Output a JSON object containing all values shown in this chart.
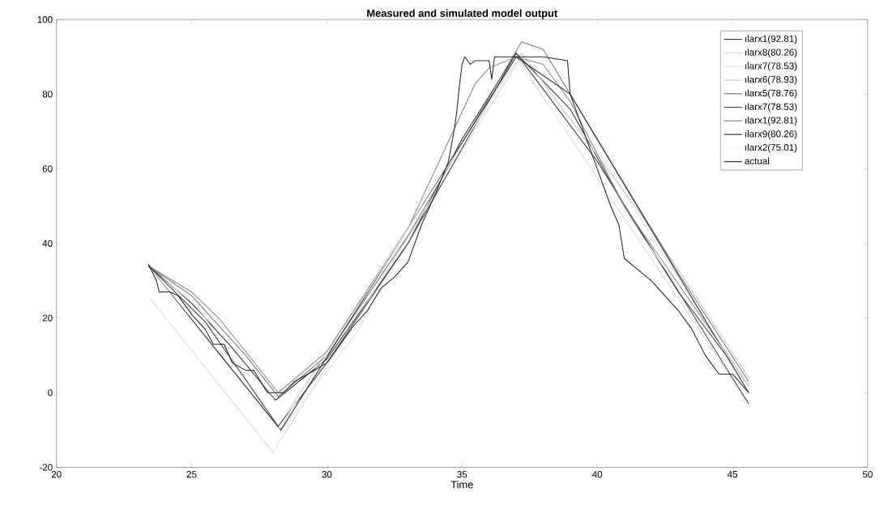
{
  "chart_data": {
    "type": "line",
    "title": "Measured and simulated model output",
    "xlabel": "Time",
    "xlim": [
      20,
      50
    ],
    "xticks": [
      20,
      25,
      30,
      35,
      40,
      45,
      50
    ],
    "ylim": [
      -20,
      100
    ],
    "yticks": [
      -20,
      0,
      20,
      40,
      60,
      80,
      100
    ],
    "grid": false,
    "legend": "top right",
    "marker": "none",
    "line_style": "solid",
    "series": [
      {
        "name": "ılarx1(92.81)",
        "color": "#333333",
        "x": [
          23.4,
          25,
          26.5,
          28.1,
          30,
          33,
          35,
          37,
          39,
          41,
          43,
          45.6
        ],
        "values": [
          34,
          24,
          12,
          -2,
          9,
          40,
          68,
          91,
          76,
          50,
          27,
          2
        ]
      },
      {
        "name": "ılarx8(80.26)",
        "color": "#d8d8d8",
        "x": [
          23.5,
          28.0,
          37.1,
          45.6
        ],
        "values": [
          25,
          -16,
          89,
          -3
        ]
      },
      {
        "name": "ılarx7(78.53)",
        "color": "#e2e2e2",
        "x": [
          23.5,
          25.5,
          28.3,
          31,
          37,
          40,
          45.6
        ],
        "values": [
          34,
          20,
          -10,
          15,
          90,
          65,
          1
        ]
      },
      {
        "name": "ılarx6(78.93)",
        "color": "#c8c8c8",
        "x": [
          23.5,
          28.2,
          37.2,
          42,
          45.6
        ],
        "values": [
          33,
          -9,
          91,
          44,
          4
        ]
      },
      {
        "name": "ılarx5(78.76)",
        "color": "#777777",
        "x": [
          23.4,
          25,
          27,
          28.2,
          30,
          33,
          37.2,
          38,
          40,
          43,
          45.6
        ],
        "values": [
          34,
          26,
          10,
          -1,
          10,
          42,
          94,
          92,
          68,
          32,
          3
        ]
      },
      {
        "name": "ılarx7(78.53)",
        "color": "#444444",
        "x": [
          23.4,
          25.5,
          28.2,
          30,
          33,
          37,
          40,
          45.6
        ],
        "values": [
          34,
          19,
          -9,
          8,
          40,
          91,
          62,
          -3
        ]
      },
      {
        "name": "ılarx1(92.81)",
        "color": "#888888",
        "x": [
          23.4,
          25,
          26,
          27,
          28.2,
          30,
          33,
          35.5,
          36,
          37,
          38,
          39,
          41,
          45.6
        ],
        "values": [
          34,
          27,
          20,
          11,
          0,
          11,
          44,
          83,
          87,
          90,
          88,
          78,
          50,
          2
        ]
      },
      {
        "name": "ılarx9(80.26)",
        "color": "#2a2a2a",
        "x": [
          23.4,
          28.3,
          37,
          39,
          45.6
        ],
        "values": [
          34,
          -10,
          90,
          80,
          0
        ]
      },
      {
        "name": "ılarx2(75.01)",
        "color": "#f2f2f2",
        "x": [
          23.5,
          28.2,
          37,
          45.6
        ],
        "values": [
          33,
          -10,
          89,
          2
        ]
      },
      {
        "name": "actual",
        "color": "#222222",
        "x": [
          23.4,
          23.7,
          23.8,
          24.2,
          24.5,
          25,
          25.5,
          25.8,
          26.2,
          26.5,
          27,
          27.3,
          27.8,
          28.4,
          28.8,
          29.3,
          30,
          30.5,
          31,
          31.5,
          32,
          32.5,
          33,
          33.5,
          34,
          34.5,
          34.7,
          34.8,
          34.9,
          35,
          35.1,
          35.3,
          35.5,
          36,
          36.1,
          36.2,
          36.5,
          37,
          38,
          38.9,
          39,
          39.2,
          39.5,
          40,
          40.5,
          40.8,
          41,
          41.5,
          42,
          42.5,
          43,
          43.5,
          44,
          44.5,
          45,
          45.6
        ],
        "values": [
          34.5,
          30,
          27,
          27,
          26,
          21,
          17,
          13,
          13,
          8,
          6,
          6,
          0,
          0,
          3,
          5,
          8,
          13,
          18,
          22,
          28,
          31,
          35,
          45,
          53,
          62,
          70,
          75,
          82,
          88,
          90,
          88,
          89,
          89,
          84,
          90,
          90,
          90,
          90,
          89,
          80,
          76,
          70,
          60,
          50,
          45,
          36,
          33,
          30,
          26,
          22,
          17,
          10,
          5,
          5,
          0
        ]
      }
    ]
  }
}
